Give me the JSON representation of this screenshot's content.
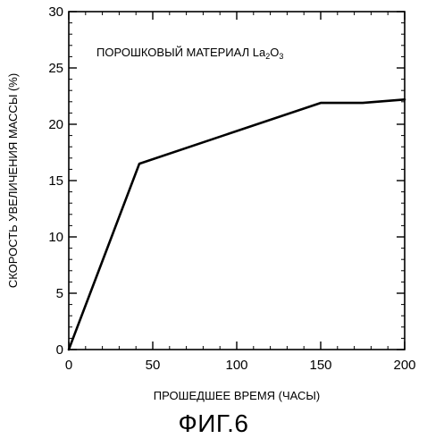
{
  "chart_data": {
    "type": "line",
    "x": [
      0,
      42,
      150,
      175,
      200
    ],
    "series": [
      {
        "values": [
          0,
          16.5,
          21.9,
          21.9,
          22.2
        ]
      }
    ],
    "xlabel": "ПРОШЕДШЕЕ ВРЕМЯ (ЧАСЫ)",
    "ylabel": "СКОРОСТЬ УВЕЛИЧЕНИЯ МАССЫ (%)",
    "xlim": [
      0,
      200
    ],
    "ylim": [
      0,
      30
    ],
    "xticks": [
      "0",
      "50",
      "100",
      "150",
      "200"
    ],
    "yticks": [
      "0",
      "5",
      "10",
      "15",
      "20",
      "25",
      "30"
    ],
    "annotation": {
      "main": "ПОРОШКОВЫЙ МАТЕРИАЛ  La",
      "sub1": "2",
      "mid": "O",
      "sub2": "3"
    },
    "grid": false,
    "line_color": "#000000"
  },
  "figure_caption": "ФИГ.6"
}
